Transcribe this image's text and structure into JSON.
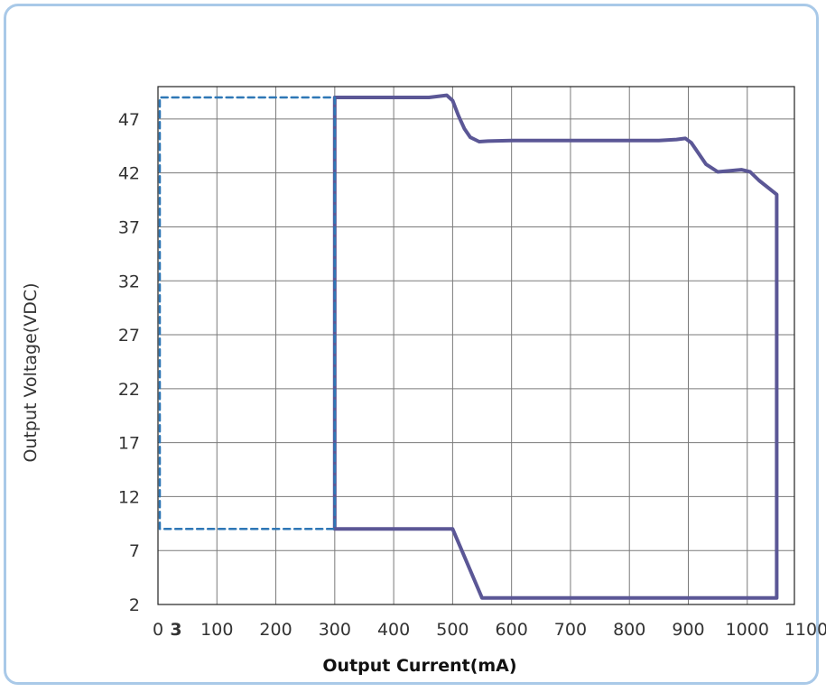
{
  "chart_data": {
    "type": "line",
    "title": "",
    "xlabel": "Output Current(mA)",
    "ylabel": "Output Voltage(VDC)",
    "xlim": [
      0,
      1050
    ],
    "ylim": [
      2,
      50
    ],
    "x_ticks": [
      0,
      100,
      200,
      300,
      400,
      500,
      600,
      700,
      800,
      900,
      1000,
      1100
    ],
    "x_tick_labels": [
      "0",
      "100",
      "200",
      "300",
      "400",
      "500",
      "600",
      "700",
      "800",
      "900",
      "1000",
      "1100"
    ],
    "x_extra_label": {
      "value": 3,
      "text": "3"
    },
    "y_ticks": [
      2,
      7,
      12,
      17,
      22,
      27,
      32,
      37,
      42,
      47
    ],
    "y_tick_labels": [
      "2",
      "7",
      "12",
      "17",
      "22",
      "27",
      "32",
      "37",
      "42",
      "47"
    ],
    "grid": true,
    "legend": "none",
    "series": [
      {
        "style": "solid",
        "color": "#5b5796",
        "points": [
          [
            300,
            9
          ],
          [
            300,
            49
          ],
          [
            460,
            49
          ],
          [
            490,
            49.2
          ],
          [
            500,
            48.7
          ],
          [
            510,
            47.3
          ],
          [
            520,
            46.1
          ],
          [
            530,
            45.3
          ],
          [
            545,
            44.9
          ],
          [
            560,
            44.95
          ],
          [
            600,
            45
          ],
          [
            850,
            45
          ],
          [
            880,
            45.1
          ],
          [
            895,
            45.2
          ],
          [
            905,
            44.8
          ],
          [
            915,
            44
          ],
          [
            930,
            42.8
          ],
          [
            950,
            42.1
          ],
          [
            990,
            42.3
          ],
          [
            1005,
            42.1
          ],
          [
            1020,
            41.3
          ],
          [
            1050,
            40
          ],
          [
            1050,
            2.6
          ],
          [
            550,
            2.6
          ],
          [
            500,
            9
          ],
          [
            300,
            9
          ]
        ]
      },
      {
        "style": "dashed",
        "color": "#2e77b6",
        "points": [
          [
            3,
            9
          ],
          [
            3,
            49
          ],
          [
            300,
            49
          ],
          [
            300,
            9
          ],
          [
            3,
            9
          ]
        ]
      }
    ]
  }
}
